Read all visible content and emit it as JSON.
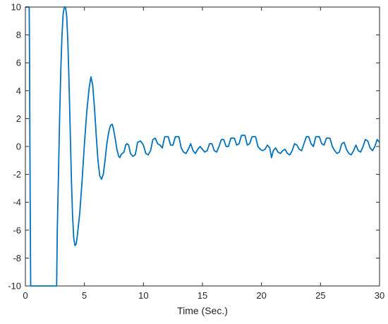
{
  "chart_data": {
    "type": "line",
    "title": "",
    "xlabel": "Time (Sec.)",
    "ylabel": "",
    "xlim": [
      0,
      30
    ],
    "ylim": [
      -10,
      10
    ],
    "x_ticks": [
      0,
      5,
      10,
      15,
      20,
      25,
      30
    ],
    "y_ticks": [
      -10,
      -8,
      -6,
      -4,
      -2,
      0,
      2,
      4,
      6,
      8,
      10
    ],
    "grid": false,
    "legend": "none",
    "series": [
      {
        "color": "#0072BD",
        "points": [
          [
            0.0,
            10
          ],
          [
            0.05,
            10
          ],
          [
            0.1,
            10
          ],
          [
            0.15,
            10
          ],
          [
            0.2,
            10
          ],
          [
            0.25,
            10
          ],
          [
            0.3,
            10
          ],
          [
            0.32,
            10
          ],
          [
            0.35,
            6
          ],
          [
            0.38,
            0
          ],
          [
            0.42,
            -6
          ],
          [
            0.45,
            -10
          ],
          [
            0.5,
            -10
          ],
          [
            1.0,
            -10
          ],
          [
            1.5,
            -10
          ],
          [
            2.0,
            -10
          ],
          [
            2.5,
            -10
          ],
          [
            2.65,
            -10
          ],
          [
            2.7,
            -6
          ],
          [
            2.8,
            -2
          ],
          [
            2.9,
            2
          ],
          [
            3.0,
            5.5
          ],
          [
            3.1,
            8
          ],
          [
            3.2,
            9.5
          ],
          [
            3.3,
            10
          ],
          [
            3.4,
            10
          ],
          [
            3.5,
            9.3
          ],
          [
            3.6,
            7.5
          ],
          [
            3.7,
            4.5
          ],
          [
            3.8,
            1
          ],
          [
            3.9,
            -2.5
          ],
          [
            4.0,
            -5
          ],
          [
            4.1,
            -6.6
          ],
          [
            4.2,
            -7.1
          ],
          [
            4.3,
            -7.0
          ],
          [
            4.4,
            -6.4
          ],
          [
            4.6,
            -4.8
          ],
          [
            4.8,
            -2.5
          ],
          [
            5.0,
            0.2
          ],
          [
            5.2,
            2.5
          ],
          [
            5.4,
            4.2
          ],
          [
            5.55,
            5.0
          ],
          [
            5.7,
            4.4
          ],
          [
            5.85,
            2.8
          ],
          [
            6.0,
            0.8
          ],
          [
            6.15,
            -1.0
          ],
          [
            6.3,
            -2.1
          ],
          [
            6.45,
            -2.35
          ],
          [
            6.6,
            -2.0
          ],
          [
            6.75,
            -1.0
          ],
          [
            6.9,
            0.2
          ],
          [
            7.05,
            1.0
          ],
          [
            7.2,
            1.5
          ],
          [
            7.35,
            1.6
          ],
          [
            7.45,
            1.3
          ],
          [
            7.6,
            0.6
          ],
          [
            7.75,
            -0.2
          ],
          [
            7.9,
            -0.7
          ],
          [
            8.0,
            -0.8
          ],
          [
            8.1,
            -0.6
          ],
          [
            8.2,
            -0.5
          ],
          [
            8.35,
            -0.4
          ],
          [
            8.5,
            0.1
          ],
          [
            8.6,
            0.2
          ],
          [
            8.75,
            0.1
          ],
          [
            8.9,
            -0.5
          ],
          [
            9.1,
            -0.7
          ],
          [
            9.3,
            -0.6
          ],
          [
            9.4,
            -0.2
          ],
          [
            9.5,
            0.3
          ],
          [
            9.75,
            0.4
          ],
          [
            10.0,
            0.1
          ],
          [
            10.2,
            -0.5
          ],
          [
            10.4,
            -0.6
          ],
          [
            10.6,
            -0.3
          ],
          [
            10.8,
            0.5
          ],
          [
            11.0,
            0.6
          ],
          [
            11.2,
            0.2
          ],
          [
            11.4,
            0.1
          ],
          [
            11.6,
            -0.1
          ],
          [
            11.8,
            0.7
          ],
          [
            12.1,
            0.7
          ],
          [
            12.3,
            0.1
          ],
          [
            12.5,
            0.1
          ],
          [
            12.7,
            0.7
          ],
          [
            13.0,
            0.7
          ],
          [
            13.2,
            -0.1
          ],
          [
            13.4,
            -0.4
          ],
          [
            13.6,
            -0.5
          ],
          [
            13.8,
            -0.2
          ],
          [
            14.0,
            0.2
          ],
          [
            14.2,
            -0.3
          ],
          [
            14.4,
            -0.5
          ],
          [
            14.6,
            -0.2
          ],
          [
            14.8,
            0.0
          ],
          [
            15.0,
            -0.2
          ],
          [
            15.2,
            -0.4
          ],
          [
            15.4,
            -0.3
          ],
          [
            15.6,
            0.2
          ],
          [
            15.8,
            0.2
          ],
          [
            16.0,
            -0.3
          ],
          [
            16.2,
            -0.4
          ],
          [
            16.4,
            0.0
          ],
          [
            16.6,
            0.5
          ],
          [
            16.8,
            0.5
          ],
          [
            17.0,
            0.0
          ],
          [
            17.2,
            0.0
          ],
          [
            17.4,
            0.6
          ],
          [
            17.7,
            0.6
          ],
          [
            17.9,
            0.1
          ],
          [
            18.1,
            0.2
          ],
          [
            18.3,
            0.8
          ],
          [
            18.6,
            0.8
          ],
          [
            18.8,
            0.1
          ],
          [
            19.0,
            0.2
          ],
          [
            19.2,
            0.7
          ],
          [
            19.5,
            0.7
          ],
          [
            19.7,
            0.0
          ],
          [
            19.9,
            -0.2
          ],
          [
            20.1,
            -0.3
          ],
          [
            20.3,
            -0.2
          ],
          [
            20.5,
            0.1
          ],
          [
            20.7,
            -0.1
          ],
          [
            20.85,
            -0.8
          ],
          [
            21.0,
            -0.3
          ],
          [
            21.2,
            -0.1
          ],
          [
            21.4,
            -0.4
          ],
          [
            21.6,
            -0.5
          ],
          [
            21.8,
            -0.3
          ],
          [
            22.0,
            -0.2
          ],
          [
            22.2,
            -0.5
          ],
          [
            22.4,
            -0.6
          ],
          [
            22.6,
            -0.3
          ],
          [
            22.8,
            0.2
          ],
          [
            23.0,
            0.1
          ],
          [
            23.2,
            -0.2
          ],
          [
            23.4,
            -0.3
          ],
          [
            23.6,
            0.2
          ],
          [
            23.8,
            0.7
          ],
          [
            24.0,
            0.7
          ],
          [
            24.2,
            0.2
          ],
          [
            24.4,
            0.0
          ],
          [
            24.6,
            0.7
          ],
          [
            24.9,
            0.7
          ],
          [
            25.1,
            0.2
          ],
          [
            25.3,
            0.1
          ],
          [
            25.5,
            0.6
          ],
          [
            25.8,
            0.6
          ],
          [
            26.0,
            0.0
          ],
          [
            26.2,
            -0.3
          ],
          [
            26.4,
            -0.5
          ],
          [
            26.6,
            -0.4
          ],
          [
            26.8,
            0.2
          ],
          [
            27.0,
            0.3
          ],
          [
            27.2,
            -0.2
          ],
          [
            27.4,
            -0.5
          ],
          [
            27.6,
            -0.6
          ],
          [
            27.8,
            -0.3
          ],
          [
            28.0,
            0.1
          ],
          [
            28.2,
            -0.3
          ],
          [
            28.4,
            -0.4
          ],
          [
            28.6,
            0.0
          ],
          [
            28.8,
            0.5
          ],
          [
            29.0,
            0.4
          ],
          [
            29.2,
            -0.1
          ],
          [
            29.4,
            -0.3
          ],
          [
            29.6,
            0.0
          ],
          [
            29.8,
            0.5
          ],
          [
            30.0,
            0.3
          ]
        ]
      }
    ]
  }
}
